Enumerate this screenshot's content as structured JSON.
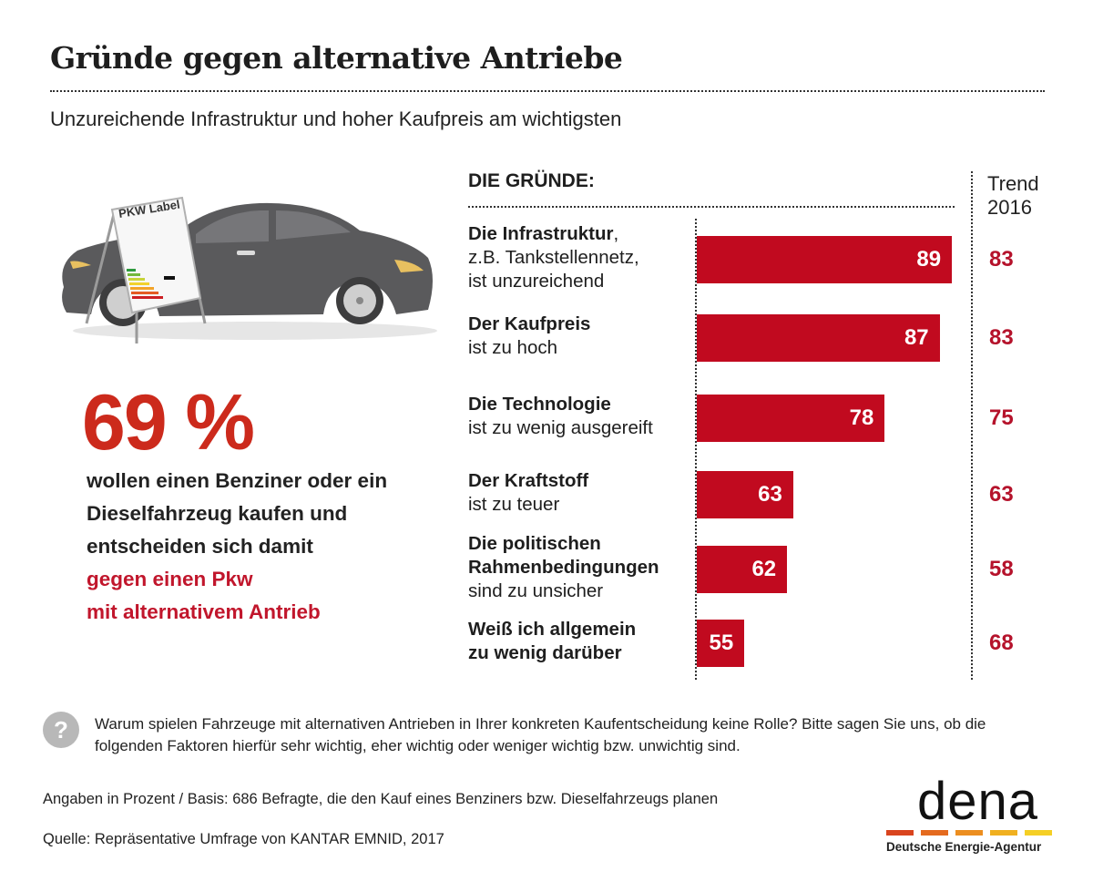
{
  "header": {
    "title": "Gründe gegen alternative Antriebe",
    "subtitle": "Unzureichende Infrastruktur und hoher Kaufpreis am wichtigsten"
  },
  "illustration": {
    "label_sign_text": "PKW Label",
    "description": "car-with-pkw-label-sign"
  },
  "highlight": {
    "percent": "69 %",
    "statement_lines": [
      "wollen einen Benziner oder ein",
      "Dieselfahrzeug kaufen und",
      "entscheiden sich damit"
    ],
    "emphasis_lines": [
      "gegen einen Pkw",
      "mit alternativem Antrieb"
    ]
  },
  "chart_data": {
    "type": "bar",
    "orientation": "horizontal",
    "title": "DIE GRÜNDE:",
    "trend_header": [
      "Trend",
      "2016"
    ],
    "categories": [
      {
        "bold": "Die Infrastruktur",
        "rest_inline": ",",
        "lines": [
          "z.B. Tankstellennetz,",
          "ist unzureichend"
        ]
      },
      {
        "bold": "Der Kaufpreis",
        "rest_inline": "",
        "lines": [
          "ist zu hoch"
        ]
      },
      {
        "bold": "Die Technologie",
        "rest_inline": "",
        "lines": [
          "ist zu wenig ausgereift"
        ]
      },
      {
        "bold": "Der Kraftstoff",
        "rest_inline": "",
        "lines": [
          "ist zu teuer"
        ]
      },
      {
        "bold": "Die politischen Rahmenbedingungen",
        "rest_inline": "",
        "lines": [
          "sind zu unsicher"
        ]
      },
      {
        "bold": "Weiß ich allgemein zu wenig darüber",
        "rest_inline": "",
        "lines": []
      }
    ],
    "series": [
      {
        "name": "2017",
        "values": [
          89,
          87,
          78,
          63,
          62,
          55
        ]
      },
      {
        "name": "Trend 2016",
        "values": [
          83,
          83,
          75,
          63,
          58,
          68
        ]
      }
    ],
    "unit": "%",
    "bar_color": "#c10a1f",
    "trend_color": "#b5122b",
    "grid": false,
    "legend": "none"
  },
  "question": {
    "icon": "question-mark-icon",
    "text": "Warum spielen Fahrzeuge mit alternativen Antrieben in Ihrer konkreten Kaufentscheidung keine Rolle? Bitte sagen Sie uns, ob die folgenden Faktoren hierfür sehr wichtig, eher wichtig oder weniger wichtig bzw. unwichtig sind."
  },
  "footer": {
    "basis": "Angaben in Prozent / Basis: 686 Befragte, die den Kauf eines Benziners bzw. Dieselfahrzeugs planen",
    "source": "Quelle: Repräsentative Umfrage von KANTAR EMNID, 2017"
  },
  "logo": {
    "word": "dena",
    "subtitle": "Deutsche Energie-Agentur",
    "stripe_colors": [
      "#d9441e",
      "#e46a1f",
      "#ec8e20",
      "#f0b020",
      "#f5cf25"
    ]
  }
}
